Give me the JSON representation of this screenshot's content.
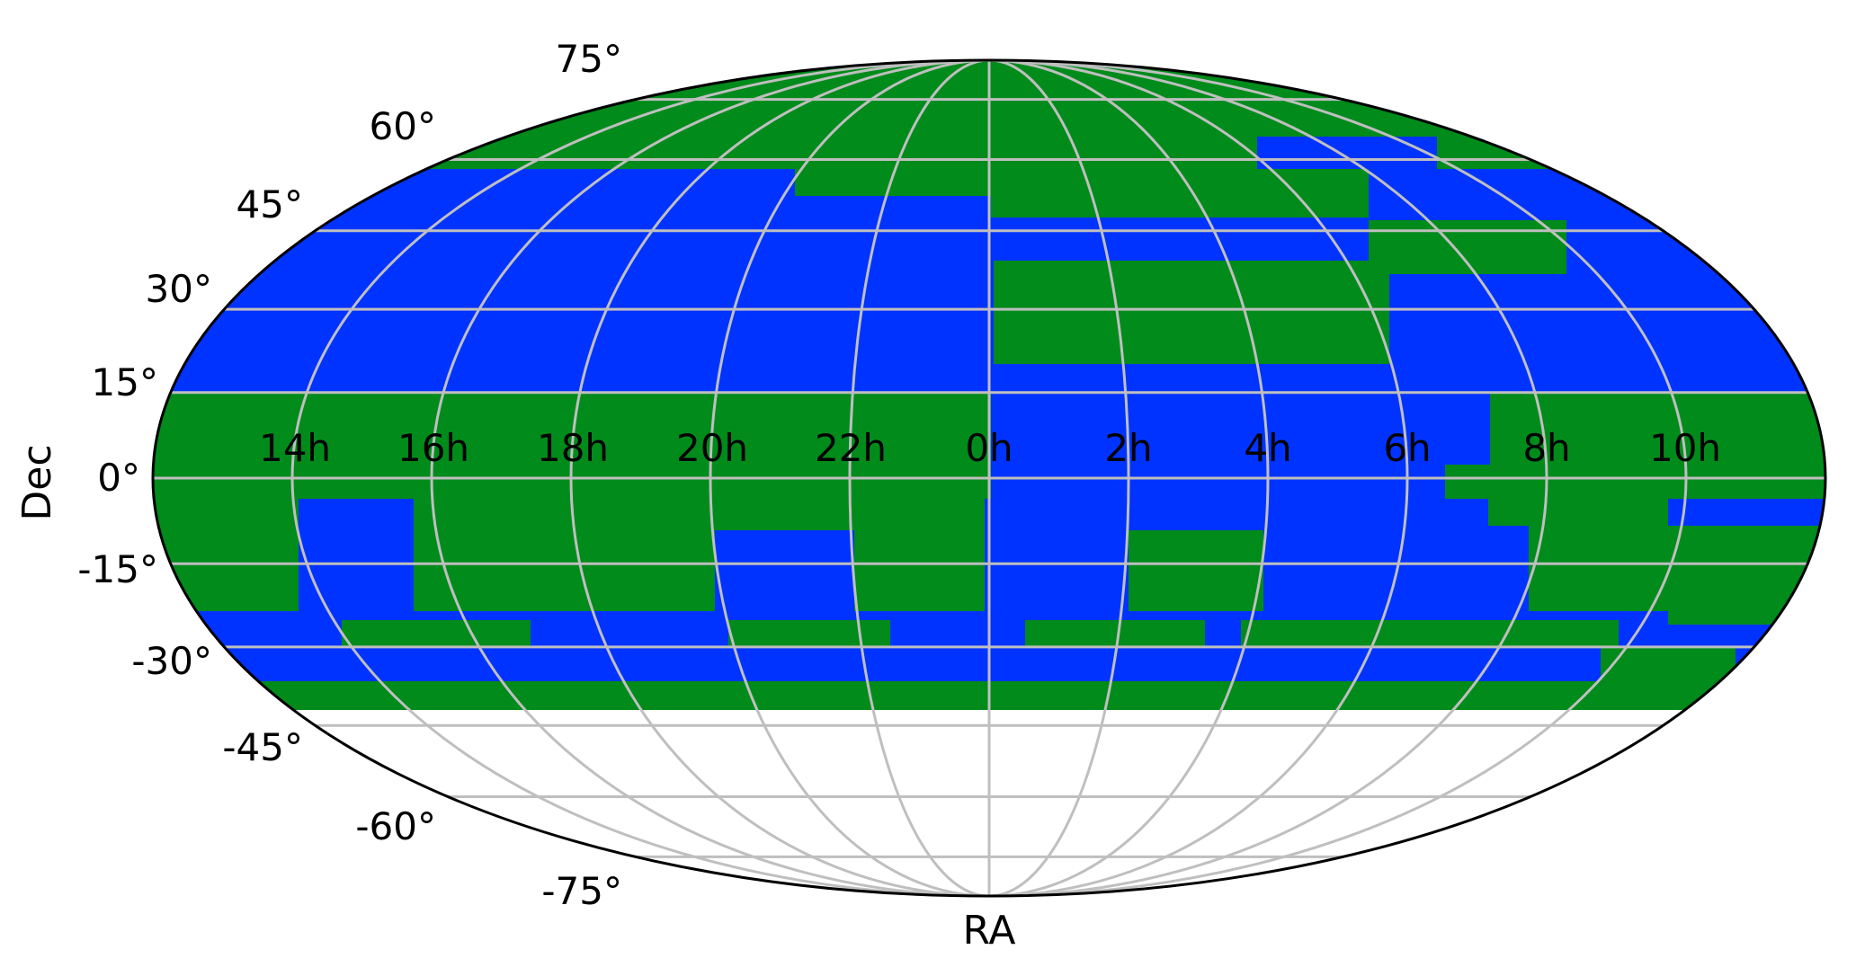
{
  "chart_data": {
    "type": "sky-map",
    "projection": "mollweide",
    "xlabel": "RA",
    "ylabel": "Dec",
    "ra_tick_labels": [
      "14h",
      "16h",
      "18h",
      "20h",
      "22h",
      "0h",
      "2h",
      "4h",
      "6h",
      "8h",
      "10h"
    ],
    "dec_tick_labels": [
      "75°",
      "60°",
      "45°",
      "30°",
      "15°",
      "0°",
      "-15°",
      "-30°",
      "-45°",
      "-60°",
      "-75°"
    ],
    "grid": true,
    "colors": {
      "region_a": "#0033ff",
      "region_b": "#008b1b",
      "grid": "#bfbfbf",
      "outline": "#000000",
      "uncovered": "#ffffff"
    },
    "coverage_dec_range": [
      -40,
      90
    ]
  }
}
